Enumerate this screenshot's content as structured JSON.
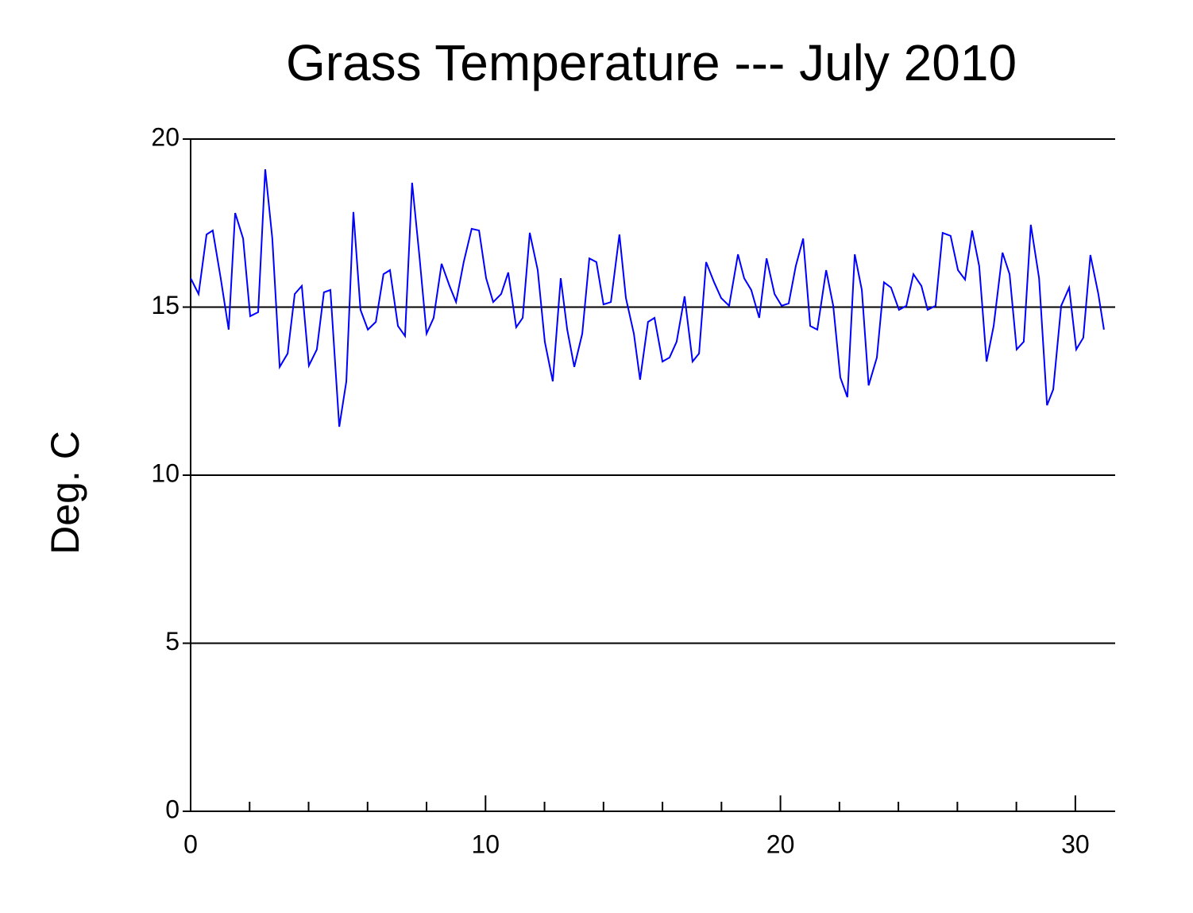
{
  "chart_data": {
    "type": "line",
    "title": "Grass Temperature --- July 2010",
    "ylabel": "Deg. C",
    "x": [
      0,
      0.27,
      0.54,
      0.75,
      1.02,
      1.29,
      1.51,
      1.78,
      2.02,
      2.29,
      2.53,
      2.77,
      3.02,
      3.29,
      3.53,
      3.77,
      4.01,
      4.28,
      4.52,
      4.74,
      5.04,
      5.28,
      5.52,
      5.76,
      6.01,
      6.28,
      6.54,
      6.76,
      7.03,
      7.27,
      7.51,
      7.76,
      8.0,
      8.24,
      8.51,
      8.78,
      9.0,
      9.26,
      9.53,
      9.78,
      10.02,
      10.26,
      10.53,
      10.77,
      11.04,
      11.26,
      11.5,
      11.77,
      12.01,
      12.28,
      12.55,
      12.77,
      13.01,
      13.28,
      13.52,
      13.76,
      14.0,
      14.25,
      14.54,
      14.76,
      15.03,
      15.24,
      15.51,
      15.73,
      16.0,
      16.24,
      16.48,
      16.75,
      17.02,
      17.24,
      17.48,
      17.75,
      17.99,
      18.26,
      18.56,
      18.77,
      19.01,
      19.28,
      19.53,
      19.8,
      20.04,
      20.28,
      20.52,
      20.77,
      21.01,
      21.25,
      21.55,
      21.79,
      22.03,
      22.27,
      22.52,
      22.76,
      22.99,
      23.27,
      23.51,
      23.75,
      24.02,
      24.27,
      24.51,
      24.78,
      24.99,
      25.26,
      25.5,
      25.77,
      26.02,
      26.26,
      26.5,
      26.74,
      26.99,
      27.23,
      27.53,
      27.77,
      28.01,
      28.25,
      28.49,
      28.77,
      29.04,
      29.25,
      29.52,
      29.79,
      30.03,
      30.27,
      30.51,
      30.78,
      30.97
    ],
    "series": [
      {
        "color": "#0000ff",
        "values": [
          15.86,
          15.39,
          17.16,
          17.28,
          15.86,
          14.33,
          17.8,
          17.04,
          14.73,
          14.85,
          19.1,
          17.04,
          13.22,
          13.62,
          15.39,
          15.63,
          13.26,
          13.74,
          15.44,
          15.51,
          11.44,
          12.79,
          17.83,
          14.92,
          14.33,
          14.56,
          15.98,
          16.1,
          14.44,
          14.14,
          18.7,
          16.5,
          14.21,
          14.68,
          16.29,
          15.63,
          15.15,
          16.34,
          17.33,
          17.28,
          15.86,
          15.15,
          15.39,
          16.03,
          14.4,
          14.68,
          17.21,
          16.1,
          13.97,
          12.79,
          15.86,
          14.33,
          13.22,
          14.21,
          16.45,
          16.34,
          15.08,
          15.15,
          17.16,
          15.27,
          14.21,
          12.84,
          14.56,
          14.68,
          13.38,
          13.5,
          13.97,
          15.32,
          13.38,
          13.62,
          16.34,
          15.74,
          15.27,
          15.04,
          16.57,
          15.86,
          15.51,
          14.68,
          16.45,
          15.39,
          15.04,
          15.11,
          16.22,
          17.04,
          14.44,
          14.33,
          16.1,
          15.04,
          12.91,
          12.32,
          16.57,
          15.51,
          12.67,
          13.5,
          15.74,
          15.58,
          14.92,
          15.04,
          15.98,
          15.63,
          14.92,
          15.04,
          17.21,
          17.12,
          16.1,
          15.82,
          17.28,
          16.22,
          13.38,
          14.44,
          16.62,
          15.98,
          13.74,
          13.97,
          17.45,
          15.86,
          12.08,
          12.55,
          15.04,
          15.58,
          13.74,
          14.09,
          16.55,
          15.39,
          14.33
        ]
      }
    ],
    "xlim": [
      0,
      31.35
    ],
    "xticks": [
      0,
      10,
      20,
      30
    ],
    "xminorticks": [
      2,
      4,
      6,
      8,
      12,
      14,
      16,
      18,
      22,
      24,
      26,
      28
    ],
    "ylim": [
      0,
      20
    ],
    "yticks": [
      0,
      5,
      10,
      15,
      20
    ],
    "grid": true
  }
}
